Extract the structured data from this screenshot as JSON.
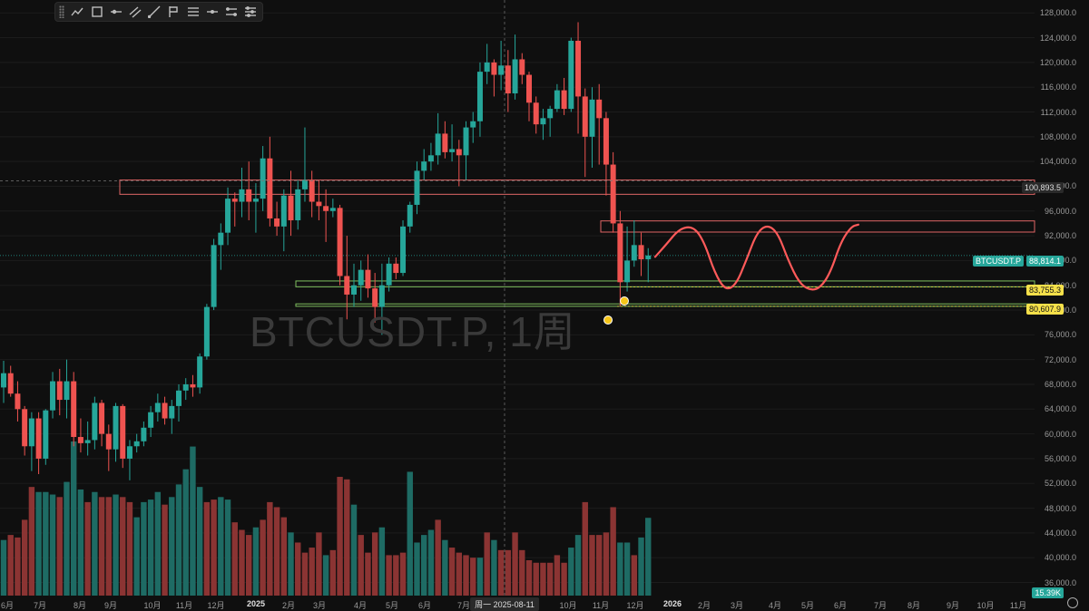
{
  "watermark": "BTCUSDT.P, 1周",
  "toolbar": {
    "tools": [
      "trend-line-icon",
      "rectangle-icon",
      "horizontal-ray-icon",
      "parallel-channel-icon",
      "fib-icon",
      "brush-icon",
      "text-icon",
      "horizontal-line-icon",
      "ranges-icon",
      "settings-icon"
    ]
  },
  "price_tags": {
    "crosshair": "100,893.5",
    "symbol": "BTCUSDT.P",
    "last": "88,814.1",
    "level_1": "83,755.3",
    "level_2": "80,607.9",
    "volume": "15.39K"
  },
  "crosshair_date": "周一 2025-08-11",
  "colors": {
    "up": "#26a69a",
    "down": "#ef5350",
    "vol_up": "#1e6b64",
    "vol_down": "#8b3433",
    "resistance": "#e06666",
    "support": "#7fbf5f",
    "projection": "#ff5a5a",
    "last_tag": "#26a69a",
    "level_tag": "#f5e04a"
  },
  "chart_data": {
    "type": "candlestick",
    "title": "",
    "y_axis": {
      "min": 33000,
      "max": 129500,
      "ticks": [
        "128,000.0",
        "124,000.0",
        "120,000.0",
        "116,000.0",
        "112,000.0",
        "108,000.0",
        "104,000.0",
        "100,000.0",
        "96,000.0",
        "92,000.0",
        "88,000.0",
        "84,000.0",
        "80,000.0",
        "76,000.0",
        "72,000.0",
        "68,000.0",
        "64,000.0",
        "60,000.0",
        "56,000.0",
        "52,000.0",
        "48,000.0",
        "44,000.0",
        "40,000.0",
        "36,000.0"
      ],
      "tick_values": [
        128000,
        124000,
        120000,
        116000,
        112000,
        108000,
        104000,
        100000,
        96000,
        92000,
        88000,
        84000,
        80000,
        76000,
        72000,
        68000,
        64000,
        60000,
        56000,
        52000,
        48000,
        44000,
        40000,
        36000
      ]
    },
    "x_axis": {
      "labels": [
        "6月",
        "7月",
        "8月",
        "9月",
        "10月",
        "11月",
        "12月",
        "2025",
        "2月",
        "3月",
        "4月",
        "5月",
        "6月",
        "7月",
        "8月",
        "10月",
        "11月",
        "12月",
        "2026",
        "2月",
        "3月",
        "4月",
        "5月",
        "6月",
        "7月",
        "8月",
        "9月",
        "10月",
        "11月"
      ],
      "year_labels": [
        "2025",
        "2026"
      ]
    },
    "candles": [
      {
        "o": 67500,
        "h": 71800,
        "l": 65000,
        "c": 69800
      },
      {
        "o": 69800,
        "h": 71000,
        "l": 66000,
        "c": 66500
      },
      {
        "o": 66500,
        "h": 68500,
        "l": 62000,
        "c": 64000
      },
      {
        "o": 64000,
        "h": 64500,
        "l": 56500,
        "c": 58000
      },
      {
        "o": 58000,
        "h": 63500,
        "l": 54000,
        "c": 62500
      },
      {
        "o": 62500,
        "h": 63500,
        "l": 53500,
        "c": 56000
      },
      {
        "o": 56000,
        "h": 64000,
        "l": 55000,
        "c": 63800
      },
      {
        "o": 63800,
        "h": 70000,
        "l": 62500,
        "c": 68500
      },
      {
        "o": 68500,
        "h": 70500,
        "l": 63000,
        "c": 65500
      },
      {
        "o": 65500,
        "h": 72000,
        "l": 62500,
        "c": 68500
      },
      {
        "o": 68500,
        "h": 70000,
        "l": 58000,
        "c": 59500
      },
      {
        "o": 59500,
        "h": 62500,
        "l": 57000,
        "c": 58500
      },
      {
        "o": 58500,
        "h": 62000,
        "l": 56500,
        "c": 59000
      },
      {
        "o": 59000,
        "h": 66000,
        "l": 57500,
        "c": 65000
      },
      {
        "o": 65000,
        "h": 65500,
        "l": 58000,
        "c": 60000
      },
      {
        "o": 60000,
        "h": 61500,
        "l": 54000,
        "c": 57500
      },
      {
        "o": 57500,
        "h": 65000,
        "l": 55500,
        "c": 64500
      },
      {
        "o": 64500,
        "h": 64800,
        "l": 54500,
        "c": 56000
      },
      {
        "o": 56000,
        "h": 59000,
        "l": 52500,
        "c": 58000
      },
      {
        "o": 58000,
        "h": 60000,
        "l": 57000,
        "c": 58800
      },
      {
        "o": 58800,
        "h": 62000,
        "l": 58000,
        "c": 61000
      },
      {
        "o": 61000,
        "h": 64500,
        "l": 59500,
        "c": 63500
      },
      {
        "o": 63500,
        "h": 66500,
        "l": 62000,
        "c": 65000
      },
      {
        "o": 65000,
        "h": 66000,
        "l": 61500,
        "c": 62500
      },
      {
        "o": 62500,
        "h": 65500,
        "l": 60000,
        "c": 64500
      },
      {
        "o": 64500,
        "h": 68000,
        "l": 62000,
        "c": 67000
      },
      {
        "o": 67000,
        "h": 69000,
        "l": 65500,
        "c": 68000
      },
      {
        "o": 68000,
        "h": 69500,
        "l": 66000,
        "c": 67500
      },
      {
        "o": 67500,
        "h": 73000,
        "l": 66500,
        "c": 72500
      },
      {
        "o": 72500,
        "h": 81000,
        "l": 72000,
        "c": 80500
      },
      {
        "o": 80500,
        "h": 91500,
        "l": 80000,
        "c": 90500
      },
      {
        "o": 90500,
        "h": 94000,
        "l": 86500,
        "c": 92500
      },
      {
        "o": 92500,
        "h": 99800,
        "l": 90500,
        "c": 98000
      },
      {
        "o": 98000,
        "h": 99000,
        "l": 93500,
        "c": 97500
      },
      {
        "o": 97500,
        "h": 103000,
        "l": 95000,
        "c": 99500
      },
      {
        "o": 99500,
        "h": 104000,
        "l": 94500,
        "c": 97500
      },
      {
        "o": 97500,
        "h": 100500,
        "l": 92500,
        "c": 98000
      },
      {
        "o": 98000,
        "h": 106500,
        "l": 96000,
        "c": 104500
      },
      {
        "o": 104500,
        "h": 108000,
        "l": 93500,
        "c": 94800
      },
      {
        "o": 94800,
        "h": 97500,
        "l": 92000,
        "c": 93500
      },
      {
        "o": 93500,
        "h": 99500,
        "l": 89500,
        "c": 98500
      },
      {
        "o": 98500,
        "h": 102500,
        "l": 92000,
        "c": 94500
      },
      {
        "o": 94500,
        "h": 101000,
        "l": 93000,
        "c": 99500
      },
      {
        "o": 99500,
        "h": 109500,
        "l": 97500,
        "c": 101000
      },
      {
        "o": 101000,
        "h": 102500,
        "l": 95000,
        "c": 97500
      },
      {
        "o": 97500,
        "h": 101000,
        "l": 94500,
        "c": 96800
      },
      {
        "o": 96800,
        "h": 99500,
        "l": 91000,
        "c": 96000
      },
      {
        "o": 96000,
        "h": 98000,
        "l": 95000,
        "c": 96500
      },
      {
        "o": 96500,
        "h": 97000,
        "l": 84000,
        "c": 85500
      },
      {
        "o": 85500,
        "h": 92000,
        "l": 78500,
        "c": 82500
      },
      {
        "o": 82500,
        "h": 87500,
        "l": 80500,
        "c": 84000
      },
      {
        "o": 84000,
        "h": 88000,
        "l": 81500,
        "c": 86500
      },
      {
        "o": 86500,
        "h": 89000,
        "l": 82000,
        "c": 83500
      },
      {
        "o": 83500,
        "h": 86000,
        "l": 78000,
        "c": 80500
      },
      {
        "o": 80500,
        "h": 87500,
        "l": 76000,
        "c": 84000
      },
      {
        "o": 84000,
        "h": 88500,
        "l": 83000,
        "c": 87500
      },
      {
        "o": 87500,
        "h": 88500,
        "l": 85000,
        "c": 86000
      },
      {
        "o": 86000,
        "h": 94500,
        "l": 85500,
        "c": 93500
      },
      {
        "o": 93500,
        "h": 97500,
        "l": 92500,
        "c": 97000
      },
      {
        "o": 97000,
        "h": 104000,
        "l": 95500,
        "c": 102500
      },
      {
        "o": 102500,
        "h": 106000,
        "l": 101000,
        "c": 104000
      },
      {
        "o": 104000,
        "h": 107000,
        "l": 102500,
        "c": 105000
      },
      {
        "o": 105000,
        "h": 111800,
        "l": 103500,
        "c": 108500
      },
      {
        "o": 108500,
        "h": 110500,
        "l": 104500,
        "c": 105500
      },
      {
        "o": 105500,
        "h": 110000,
        "l": 104000,
        "c": 106000
      },
      {
        "o": 106000,
        "h": 107500,
        "l": 100000,
        "c": 105000
      },
      {
        "o": 105000,
        "h": 110500,
        "l": 101000,
        "c": 109500
      },
      {
        "o": 109500,
        "h": 112000,
        "l": 107000,
        "c": 110500
      },
      {
        "o": 110500,
        "h": 120000,
        "l": 108000,
        "c": 118500
      },
      {
        "o": 118500,
        "h": 123000,
        "l": 116500,
        "c": 120000
      },
      {
        "o": 120000,
        "h": 120500,
        "l": 114500,
        "c": 118000
      },
      {
        "o": 118000,
        "h": 123500,
        "l": 115500,
        "c": 119500
      },
      {
        "o": 119500,
        "h": 122000,
        "l": 112000,
        "c": 115000
      },
      {
        "o": 115000,
        "h": 124500,
        "l": 114000,
        "c": 120500
      },
      {
        "o": 120500,
        "h": 121500,
        "l": 116500,
        "c": 118000
      },
      {
        "o": 118000,
        "h": 118500,
        "l": 110500,
        "c": 113500
      },
      {
        "o": 113500,
        "h": 114500,
        "l": 108500,
        "c": 110000
      },
      {
        "o": 110000,
        "h": 112500,
        "l": 107500,
        "c": 111000
      },
      {
        "o": 111000,
        "h": 113000,
        "l": 108000,
        "c": 112500
      },
      {
        "o": 112500,
        "h": 116500,
        "l": 112000,
        "c": 115500
      },
      {
        "o": 115500,
        "h": 117500,
        "l": 111500,
        "c": 112500
      },
      {
        "o": 112500,
        "h": 124000,
        "l": 112000,
        "c": 123500
      },
      {
        "o": 123500,
        "h": 126500,
        "l": 108500,
        "c": 114500
      },
      {
        "o": 114500,
        "h": 115800,
        "l": 101500,
        "c": 108000
      },
      {
        "o": 108000,
        "h": 116000,
        "l": 103000,
        "c": 114000
      },
      {
        "o": 114000,
        "h": 116500,
        "l": 103500,
        "c": 111000
      },
      {
        "o": 111000,
        "h": 112000,
        "l": 98500,
        "c": 103500
      },
      {
        "o": 103500,
        "h": 105500,
        "l": 92500,
        "c": 94000
      },
      {
        "o": 94000,
        "h": 96000,
        "l": 80600,
        "c": 84500
      },
      {
        "o": 84500,
        "h": 93500,
        "l": 83000,
        "c": 88000
      },
      {
        "o": 88000,
        "h": 94500,
        "l": 87000,
        "c": 90500
      },
      {
        "o": 90500,
        "h": 92500,
        "l": 85500,
        "c": 88200
      },
      {
        "o": 88200,
        "h": 90000,
        "l": 84500,
        "c": 88814
      }
    ],
    "volumes": [
      {
        "v": 11000,
        "up": true
      },
      {
        "v": 12000,
        "up": false
      },
      {
        "v": 11500,
        "up": false
      },
      {
        "v": 15000,
        "up": false
      },
      {
        "v": 21500,
        "up": false
      },
      {
        "v": 20500,
        "up": true
      },
      {
        "v": 20500,
        "up": true
      },
      {
        "v": 20000,
        "up": true
      },
      {
        "v": 19500,
        "up": false
      },
      {
        "v": 22500,
        "up": true
      },
      {
        "v": 30500,
        "up": true
      },
      {
        "v": 21000,
        "up": true
      },
      {
        "v": 18500,
        "up": false
      },
      {
        "v": 20500,
        "up": true
      },
      {
        "v": 19500,
        "up": false
      },
      {
        "v": 19500,
        "up": false
      },
      {
        "v": 20000,
        "up": true
      },
      {
        "v": 19500,
        "up": false
      },
      {
        "v": 18500,
        "up": false
      },
      {
        "v": 15500,
        "up": true
      },
      {
        "v": 18500,
        "up": true
      },
      {
        "v": 19000,
        "up": true
      },
      {
        "v": 20500,
        "up": true
      },
      {
        "v": 18000,
        "up": false
      },
      {
        "v": 19500,
        "up": true
      },
      {
        "v": 22000,
        "up": true
      },
      {
        "v": 25000,
        "up": true
      },
      {
        "v": 29500,
        "up": true
      },
      {
        "v": 21500,
        "up": true
      },
      {
        "v": 18500,
        "up": false
      },
      {
        "v": 19000,
        "up": false
      },
      {
        "v": 19500,
        "up": true
      },
      {
        "v": 19000,
        "up": true
      },
      {
        "v": 14500,
        "up": false
      },
      {
        "v": 13000,
        "up": false
      },
      {
        "v": 12000,
        "up": false
      },
      {
        "v": 13500,
        "up": true
      },
      {
        "v": 15000,
        "up": false
      },
      {
        "v": 18500,
        "up": false
      },
      {
        "v": 17500,
        "up": false
      },
      {
        "v": 15500,
        "up": false
      },
      {
        "v": 12500,
        "up": true
      },
      {
        "v": 10500,
        "up": false
      },
      {
        "v": 8500,
        "up": false
      },
      {
        "v": 9500,
        "up": false
      },
      {
        "v": 12500,
        "up": false
      },
      {
        "v": 8000,
        "up": true
      },
      {
        "v": 9000,
        "up": false
      },
      {
        "v": 23500,
        "up": false
      },
      {
        "v": 23000,
        "up": false
      },
      {
        "v": 18000,
        "up": true
      },
      {
        "v": 12000,
        "up": false
      },
      {
        "v": 8500,
        "up": false
      },
      {
        "v": 12500,
        "up": false
      },
      {
        "v": 13500,
        "up": true
      },
      {
        "v": 8000,
        "up": false
      },
      {
        "v": 8000,
        "up": false
      },
      {
        "v": 8500,
        "up": false
      },
      {
        "v": 24500,
        "up": true
      },
      {
        "v": 10500,
        "up": true
      },
      {
        "v": 12000,
        "up": true
      },
      {
        "v": 13000,
        "up": true
      },
      {
        "v": 15000,
        "up": false
      },
      {
        "v": 11000,
        "up": true
      },
      {
        "v": 9500,
        "up": false
      },
      {
        "v": 8500,
        "up": false
      },
      {
        "v": 8000,
        "up": false
      },
      {
        "v": 7500,
        "up": false
      },
      {
        "v": 7500,
        "up": true
      },
      {
        "v": 12500,
        "up": false
      },
      {
        "v": 11000,
        "up": true
      },
      {
        "v": 9000,
        "up": false
      },
      {
        "v": 9000,
        "up": false
      },
      {
        "v": 12500,
        "up": false
      },
      {
        "v": 9000,
        "up": false
      },
      {
        "v": 7000,
        "up": false
      },
      {
        "v": 6500,
        "up": false
      },
      {
        "v": 6500,
        "up": false
      },
      {
        "v": 6500,
        "up": false
      },
      {
        "v": 8000,
        "up": false
      },
      {
        "v": 6500,
        "up": false
      },
      {
        "v": 9500,
        "up": true
      },
      {
        "v": 12000,
        "up": true
      },
      {
        "v": 18500,
        "up": false
      },
      {
        "v": 12000,
        "up": false
      },
      {
        "v": 12000,
        "up": false
      },
      {
        "v": 12500,
        "up": false
      },
      {
        "v": 17500,
        "up": false
      },
      {
        "v": 10500,
        "up": true
      },
      {
        "v": 10500,
        "up": true
      },
      {
        "v": 8000,
        "up": false
      },
      {
        "v": 11500,
        "up": true
      },
      {
        "v": 15390,
        "up": true
      }
    ],
    "zones": [
      {
        "kind": "resistance",
        "from": 101000,
        "to": 98700
      },
      {
        "kind": "resistance",
        "from": 94400,
        "to": 92600
      },
      {
        "kind": "support",
        "from": 84700,
        "to": 83755.3
      },
      {
        "kind": "support",
        "from": 81000,
        "to": 80607.9
      }
    ],
    "levels": [
      88814.1,
      83755.3,
      80607.9,
      100893.5
    ],
    "projection": [
      {
        "x": 93,
        "p": 88600
      },
      {
        "x": 94.5,
        "p": 90500
      },
      {
        "x": 96.5,
        "p": 93200
      },
      {
        "x": 98.5,
        "p": 93500
      },
      {
        "x": 100,
        "p": 91000
      },
      {
        "x": 101.5,
        "p": 86000
      },
      {
        "x": 103,
        "p": 83200
      },
      {
        "x": 104.5,
        "p": 84000
      },
      {
        "x": 106,
        "p": 88000
      },
      {
        "x": 107.5,
        "p": 92500
      },
      {
        "x": 109,
        "p": 93800
      },
      {
        "x": 110.5,
        "p": 92500
      },
      {
        "x": 112,
        "p": 88000
      },
      {
        "x": 113.5,
        "p": 84500
      },
      {
        "x": 115,
        "p": 83200
      },
      {
        "x": 116.5,
        "p": 83500
      },
      {
        "x": 118,
        "p": 86000
      },
      {
        "x": 119.5,
        "p": 91000
      },
      {
        "x": 121,
        "p": 93500
      },
      {
        "x": 122,
        "p": 93800
      }
    ]
  }
}
